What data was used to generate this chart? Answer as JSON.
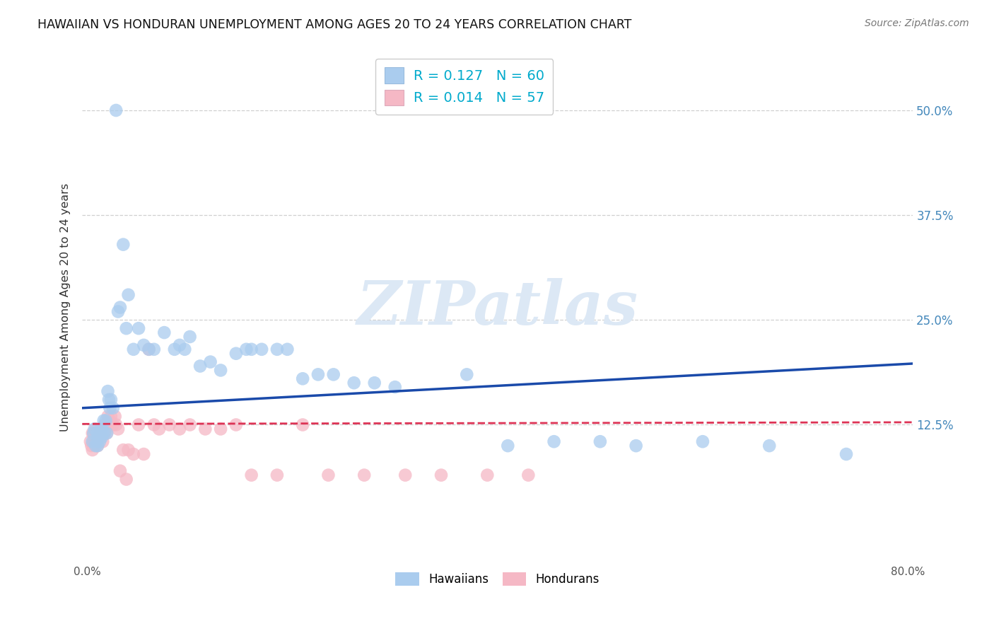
{
  "title": "HAWAIIAN VS HONDURAN UNEMPLOYMENT AMONG AGES 20 TO 24 YEARS CORRELATION CHART",
  "source": "Source: ZipAtlas.com",
  "ylabel": "Unemployment Among Ages 20 to 24 years",
  "xlim_min": -0.005,
  "xlim_max": 0.805,
  "ylim_min": -0.04,
  "ylim_max": 0.57,
  "ytick_vals": [
    0.125,
    0.25,
    0.375,
    0.5
  ],
  "ytick_labels": [
    "12.5%",
    "25.0%",
    "37.5%",
    "50.0%"
  ],
  "xtick_vals": [
    0.0,
    0.2,
    0.4,
    0.6,
    0.8
  ],
  "xtick_labels": [
    "0.0%",
    "",
    "",
    "",
    "80.0%"
  ],
  "grid_color": "#d0d0d0",
  "watermark_text": "ZIPatlas",
  "bg_color": "#ffffff",
  "haw_dot_color": "#aaccee",
  "hon_dot_color": "#f5b8c5",
  "haw_line_color": "#1a4aaa",
  "hon_line_color": "#dd3355",
  "R_haw": 0.127,
  "N_haw": 60,
  "R_hon": 0.014,
  "N_hon": 57,
  "haw_line_y_start": 0.145,
  "haw_line_y_end": 0.198,
  "hon_line_y_start": 0.126,
  "hon_line_y_end": 0.128,
  "legend1_label": "Hawaiians",
  "legend2_label": "Hondurans",
  "num_color": "#00aacc",
  "scatter_size": 180,
  "scatter_alpha": 0.75,
  "hawaiians_x": [
    0.005,
    0.006,
    0.007,
    0.008,
    0.009,
    0.01,
    0.01,
    0.011,
    0.012,
    0.013,
    0.014,
    0.015,
    0.016,
    0.017,
    0.018,
    0.019,
    0.02,
    0.021,
    0.022,
    0.023,
    0.025,
    0.028,
    0.03,
    0.032,
    0.035,
    0.038,
    0.04,
    0.045,
    0.05,
    0.055,
    0.06,
    0.065,
    0.075,
    0.085,
    0.09,
    0.095,
    0.1,
    0.11,
    0.12,
    0.13,
    0.145,
    0.155,
    0.16,
    0.17,
    0.185,
    0.195,
    0.21,
    0.225,
    0.24,
    0.26,
    0.28,
    0.3,
    0.37,
    0.41,
    0.455,
    0.5,
    0.535,
    0.6,
    0.665,
    0.74
  ],
  "hawaiians_y": [
    0.105,
    0.115,
    0.12,
    0.1,
    0.105,
    0.115,
    0.1,
    0.11,
    0.105,
    0.12,
    0.11,
    0.115,
    0.13,
    0.115,
    0.13,
    0.115,
    0.165,
    0.155,
    0.145,
    0.155,
    0.145,
    0.5,
    0.26,
    0.265,
    0.34,
    0.24,
    0.28,
    0.215,
    0.24,
    0.22,
    0.215,
    0.215,
    0.235,
    0.215,
    0.22,
    0.215,
    0.23,
    0.195,
    0.2,
    0.19,
    0.21,
    0.215,
    0.215,
    0.215,
    0.215,
    0.215,
    0.18,
    0.185,
    0.185,
    0.175,
    0.175,
    0.17,
    0.185,
    0.1,
    0.105,
    0.105,
    0.1,
    0.105,
    0.1,
    0.09
  ],
  "hondurans_x": [
    0.003,
    0.004,
    0.005,
    0.005,
    0.006,
    0.006,
    0.007,
    0.007,
    0.008,
    0.008,
    0.009,
    0.009,
    0.01,
    0.01,
    0.011,
    0.012,
    0.013,
    0.013,
    0.014,
    0.015,
    0.016,
    0.017,
    0.018,
    0.019,
    0.02,
    0.021,
    0.022,
    0.023,
    0.025,
    0.027,
    0.028,
    0.03,
    0.032,
    0.035,
    0.038,
    0.04,
    0.045,
    0.05,
    0.055,
    0.06,
    0.065,
    0.07,
    0.08,
    0.09,
    0.1,
    0.115,
    0.13,
    0.145,
    0.16,
    0.185,
    0.21,
    0.235,
    0.27,
    0.31,
    0.345,
    0.39,
    0.43
  ],
  "hondurans_y": [
    0.105,
    0.1,
    0.095,
    0.115,
    0.105,
    0.115,
    0.115,
    0.105,
    0.105,
    0.12,
    0.11,
    0.115,
    0.1,
    0.115,
    0.11,
    0.115,
    0.115,
    0.115,
    0.115,
    0.105,
    0.115,
    0.125,
    0.12,
    0.115,
    0.135,
    0.13,
    0.13,
    0.135,
    0.125,
    0.135,
    0.125,
    0.12,
    0.07,
    0.095,
    0.06,
    0.095,
    0.09,
    0.125,
    0.09,
    0.215,
    0.125,
    0.12,
    0.125,
    0.12,
    0.125,
    0.12,
    0.12,
    0.125,
    0.065,
    0.065,
    0.125,
    0.065,
    0.065,
    0.065,
    0.065,
    0.065,
    0.065
  ]
}
